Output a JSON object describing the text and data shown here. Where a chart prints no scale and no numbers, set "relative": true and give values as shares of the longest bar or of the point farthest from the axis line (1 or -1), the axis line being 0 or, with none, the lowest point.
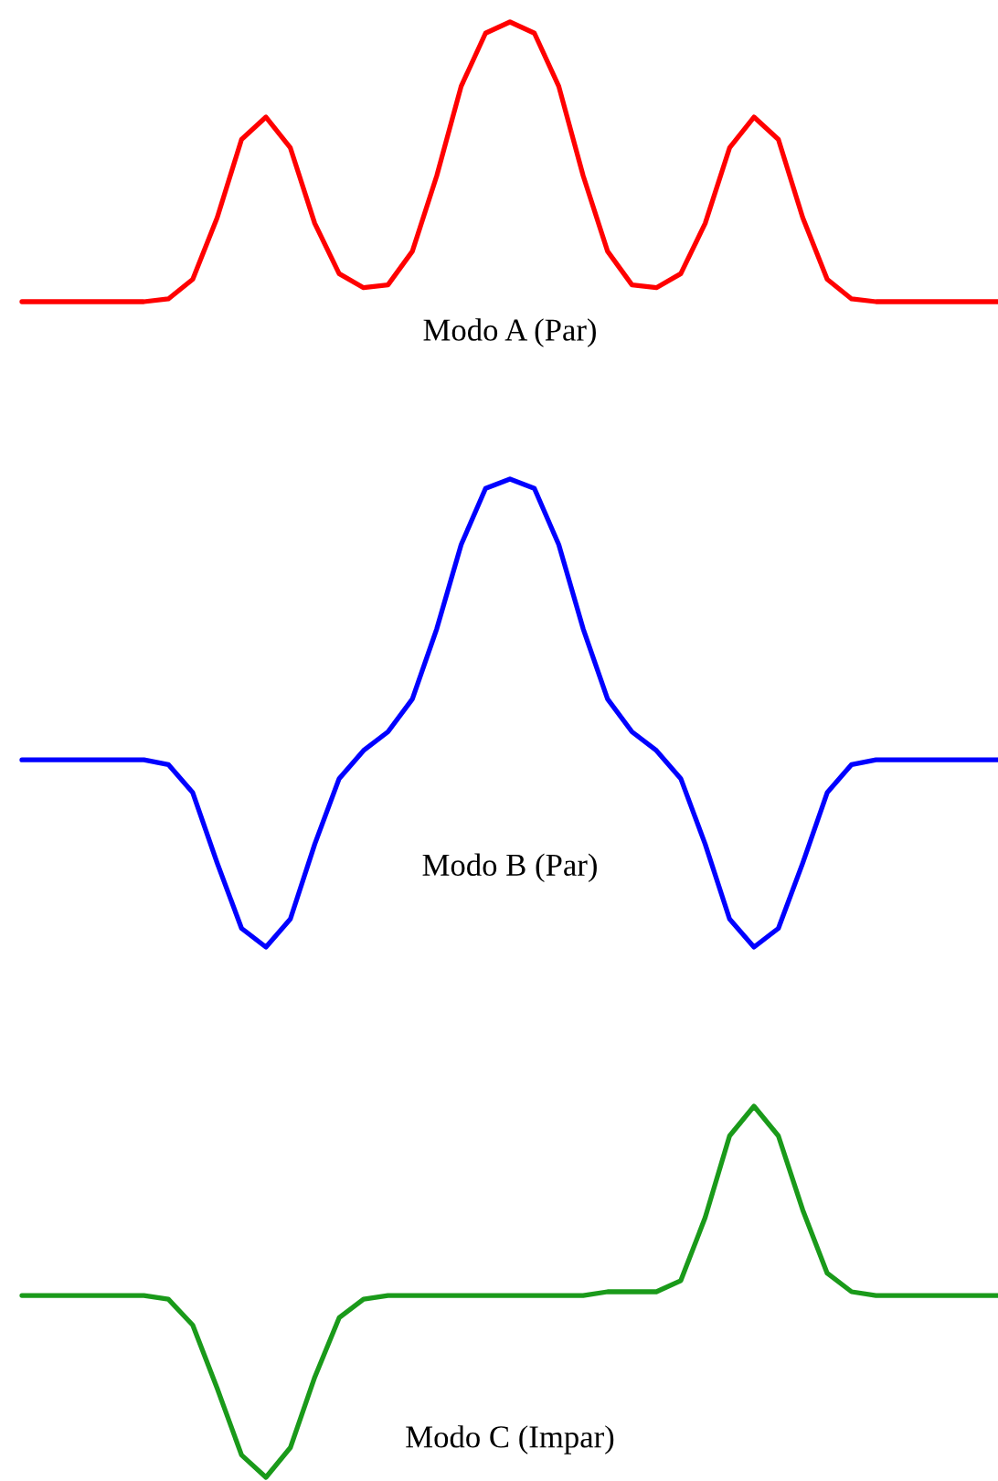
{
  "chart_data": [
    {
      "type": "line",
      "relative": true,
      "xlabel": "Modo A (Par)",
      "categories": [
        null,
        null,
        null,
        null,
        null,
        null,
        null,
        null,
        null,
        null,
        null,
        null,
        null,
        null,
        null,
        null,
        null,
        null,
        null,
        null,
        null,
        null,
        null,
        null,
        null,
        null,
        null,
        null,
        null,
        null,
        null,
        null,
        null,
        null,
        null,
        null,
        null,
        null,
        null,
        null,
        null
      ],
      "series": [
        {
          "color": "#ff0000",
          "values": [
            0,
            0,
            0,
            0,
            0,
            0,
            0.01,
            0.08,
            0.3,
            0.58,
            0.66,
            0.55,
            0.28,
            0.1,
            0.05,
            0.06,
            0.18,
            0.45,
            0.77,
            0.96,
            1,
            0.96,
            0.77,
            0.45,
            0.18,
            0.06,
            0.05,
            0.1,
            0.28,
            0.55,
            0.66,
            0.58,
            0.3,
            0.08,
            0.01,
            0,
            0,
            0,
            0,
            0,
            0
          ]
        }
      ]
    },
    {
      "type": "line",
      "relative": true,
      "xlabel": "Modo B (Par)",
      "categories": [
        null,
        null,
        null,
        null,
        null,
        null,
        null,
        null,
        null,
        null,
        null,
        null,
        null,
        null,
        null,
        null,
        null,
        null,
        null,
        null,
        null,
        null,
        null,
        null,
        null,
        null,
        null,
        null,
        null,
        null,
        null,
        null,
        null,
        null,
        null,
        null,
        null,
        null,
        null,
        null,
        null
      ],
      "series": [
        {
          "color": "#0000ff",
          "values": [
            0.4,
            0.4,
            0.4,
            0.4,
            0.4,
            0.4,
            0.39,
            0.33,
            0.18,
            0.04,
            0,
            0.06,
            0.22,
            0.36,
            0.42,
            0.46,
            0.53,
            0.68,
            0.86,
            0.98,
            1,
            0.98,
            0.86,
            0.68,
            0.53,
            0.46,
            0.42,
            0.36,
            0.22,
            0.06,
            0,
            0.04,
            0.18,
            0.33,
            0.39,
            0.4,
            0.4,
            0.4,
            0.4,
            0.4,
            0.4
          ]
        }
      ]
    },
    {
      "type": "line",
      "relative": true,
      "xlabel": "Modo C (Impar)",
      "categories": [
        null,
        null,
        null,
        null,
        null,
        null,
        null,
        null,
        null,
        null,
        null,
        null,
        null,
        null,
        null,
        null,
        null,
        null,
        null,
        null,
        null,
        null,
        null,
        null,
        null,
        null,
        null,
        null,
        null,
        null,
        null,
        null,
        null,
        null,
        null,
        null,
        null,
        null,
        null,
        null,
        null
      ],
      "series": [
        {
          "color": "#1a9a1a",
          "values": [
            0.49,
            0.49,
            0.49,
            0.49,
            0.49,
            0.49,
            0.48,
            0.41,
            0.24,
            0.06,
            0,
            0.08,
            0.27,
            0.43,
            0.48,
            0.49,
            0.49,
            0.49,
            0.49,
            0.49,
            0.49,
            0.49,
            0.49,
            0.49,
            0.5,
            0.5,
            0.5,
            0.53,
            0.7,
            0.92,
            1,
            0.92,
            0.72,
            0.55,
            0.5,
            0.49,
            0.49,
            0.49,
            0.49,
            0.49,
            0.49
          ]
        }
      ]
    }
  ]
}
